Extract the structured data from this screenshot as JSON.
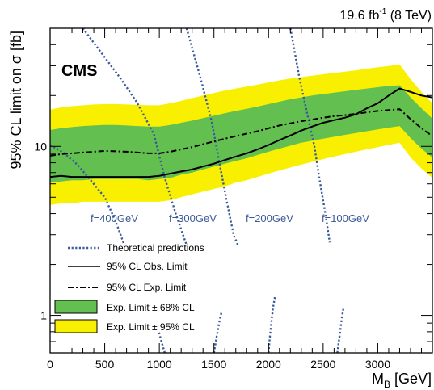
{
  "chart_data": {
    "type": "line",
    "title": "",
    "lumi_label": "19.6 fb",
    "lumi_sup": "-1",
    "lumi_suffix": " (8 TeV)",
    "experiment_label": "CMS",
    "xlabel_main": "M",
    "xlabel_sub": "B",
    "xlabel_unit": " [GeV]",
    "ylabel": "95% CL limit on σ [fb]",
    "xlim": [
      0,
      3500
    ],
    "ylim": [
      0.6,
      50
    ],
    "yscale": "log",
    "x_ticks": [
      0,
      500,
      1000,
      1500,
      2000,
      2500,
      3000
    ],
    "x_tick_labels": [
      "0",
      "500",
      "1000",
      "1500",
      "2000",
      "2500",
      "3000"
    ],
    "y_ticks": [
      1,
      10
    ],
    "y_tick_labels": [
      "1",
      "10"
    ],
    "x": [
      0,
      100,
      200,
      300,
      400,
      500,
      600,
      700,
      800,
      900,
      1000,
      1100,
      1200,
      1300,
      1400,
      1500,
      1600,
      1700,
      1800,
      1900,
      2000,
      2100,
      2200,
      2300,
      2400,
      2500,
      2600,
      2700,
      2800,
      2900,
      3000,
      3100,
      3200,
      3300,
      3400,
      3500
    ],
    "series": [
      {
        "name": "95% CL Obs. Limit",
        "style": "solid",
        "color": "#000000",
        "values": [
          6.6,
          6.7,
          6.6,
          6.6,
          6.6,
          6.6,
          6.6,
          6.6,
          6.6,
          6.6,
          6.7,
          6.9,
          7.1,
          7.3,
          7.6,
          7.9,
          8.3,
          8.7,
          9.1,
          9.6,
          10.2,
          10.9,
          11.6,
          12.4,
          13.1,
          13.8,
          14.3,
          14.8,
          15.5,
          16.8,
          18.0,
          20.0,
          22.0,
          21.0,
          20.0,
          19.5
        ]
      },
      {
        "name": "95% CL Exp. Limit",
        "style": "dashdot",
        "color": "#000000",
        "values": [
          8.8,
          9.0,
          9.1,
          9.2,
          9.3,
          9.4,
          9.35,
          9.3,
          9.2,
          9.1,
          9.1,
          9.3,
          9.6,
          9.9,
          10.3,
          10.7,
          11.1,
          11.5,
          11.9,
          12.3,
          12.8,
          13.3,
          13.7,
          14.1,
          14.4,
          14.8,
          15.1,
          15.3,
          15.6,
          15.9,
          16.2,
          16.4,
          16.6,
          14.5,
          12.8,
          11.5
        ]
      }
    ],
    "bands": [
      {
        "name": "Exp. Limit ± 95% CL",
        "color": "#f8f000",
        "lower": [
          4.5,
          4.6,
          4.6,
          4.7,
          4.7,
          4.7,
          4.7,
          4.7,
          4.7,
          4.7,
          4.7,
          4.8,
          5.0,
          5.2,
          5.4,
          5.6,
          5.8,
          6.1,
          6.3,
          6.6,
          6.9,
          7.2,
          7.5,
          7.8,
          8.1,
          8.4,
          8.7,
          9.0,
          9.3,
          9.6,
          9.9,
          10.2,
          10.5,
          8.6,
          7.4,
          6.5
        ],
        "upper": [
          16.5,
          17.0,
          17.3,
          17.5,
          17.7,
          17.8,
          17.8,
          17.7,
          17.6,
          17.5,
          17.5,
          18.0,
          18.6,
          19.3,
          20.0,
          20.7,
          21.4,
          22.0,
          22.6,
          23.2,
          23.9,
          24.6,
          25.2,
          25.7,
          26.2,
          26.7,
          27.2,
          27.7,
          28.2,
          28.8,
          29.4,
          29.9,
          30.5,
          25.0,
          21.0,
          18.0
        ]
      },
      {
        "name": "Exp. Limit ± 68% CL",
        "color": "#63bf4f",
        "lower": [
          6.1,
          6.2,
          6.3,
          6.3,
          6.4,
          6.4,
          6.4,
          6.4,
          6.4,
          6.3,
          6.4,
          6.5,
          6.8,
          7.0,
          7.3,
          7.6,
          7.9,
          8.2,
          8.5,
          8.9,
          9.3,
          9.7,
          10.1,
          10.5,
          10.8,
          11.1,
          11.4,
          11.7,
          12.0,
          12.3,
          12.6,
          12.9,
          13.2,
          11.2,
          9.7,
          8.6
        ],
        "upper": [
          12.5,
          12.8,
          13.0,
          13.2,
          13.3,
          13.4,
          13.4,
          13.3,
          13.2,
          13.1,
          13.1,
          13.4,
          13.8,
          14.2,
          14.7,
          15.2,
          15.7,
          16.2,
          16.7,
          17.2,
          17.8,
          18.4,
          19.0,
          19.5,
          20.0,
          20.4,
          20.8,
          21.2,
          21.6,
          22.0,
          22.4,
          22.8,
          23.0,
          19.5,
          16.8,
          14.6
        ]
      }
    ],
    "theory_curves": [
      {
        "label": "f=400GeV",
        "points": [
          [
            0,
            10.2
          ],
          [
            120,
            9.2
          ],
          [
            250,
            7.8
          ],
          [
            380,
            6.2
          ],
          [
            500,
            5.0
          ],
          [
            600,
            3.6
          ],
          [
            680,
            2.6
          ]
        ]
      },
      {
        "label": "f=300GeV",
        "points": [
          [
            300,
            50
          ],
          [
            480,
            35
          ],
          [
            650,
            25
          ],
          [
            800,
            18
          ],
          [
            950,
            11.8
          ],
          [
            1050,
            6.5
          ],
          [
            1150,
            4.0
          ],
          [
            1250,
            2.6
          ]
        ]
      },
      {
        "label": "f=200GeV",
        "points": [
          [
            1250,
            50
          ],
          [
            1380,
            25
          ],
          [
            1480,
            14
          ],
          [
            1550,
            8.0
          ],
          [
            1610,
            5.0
          ],
          [
            1680,
            3.0
          ],
          [
            1720,
            2.6
          ]
        ]
      },
      {
        "label": "f=100GeV",
        "points": [
          [
            2200,
            50
          ],
          [
            2280,
            26
          ],
          [
            2360,
            15
          ],
          [
            2420,
            10
          ],
          [
            2470,
            6.2
          ],
          [
            2520,
            4.0
          ],
          [
            2560,
            2.7
          ]
        ]
      },
      {
        "label": "",
        "points": [
          [
            1050,
            0.6
          ],
          [
            1020,
            0.7
          ],
          [
            995,
            0.8
          ]
        ]
      },
      {
        "label": "",
        "points": [
          [
            1500,
            0.6
          ],
          [
            1525,
            0.75
          ],
          [
            1555,
            0.95
          ],
          [
            1570,
            1.05
          ]
        ]
      },
      {
        "label": "",
        "points": [
          [
            2000,
            0.6
          ],
          [
            2010,
            0.72
          ],
          [
            2025,
            0.9
          ],
          [
            2040,
            1.1
          ],
          [
            2060,
            1.3
          ]
        ]
      },
      {
        "label": "",
        "points": [
          [
            2630,
            0.6
          ],
          [
            2650,
            0.75
          ],
          [
            2670,
            0.95
          ],
          [
            2685,
            1.1
          ]
        ]
      }
    ],
    "legend": {
      "position": "bottom-left",
      "entries": [
        {
          "label": "Theoretical predictions",
          "kind": "dotted"
        },
        {
          "label": "95% CL Obs. Limit",
          "kind": "solid"
        },
        {
          "label": "95% CL Exp. Limit",
          "kind": "dashdot"
        },
        {
          "label": "Exp. Limit ± 68% CL",
          "kind": "box",
          "color": "#63bf4f"
        },
        {
          "label": "Exp. Limit ± 95% CL",
          "kind": "box",
          "color": "#f8f000"
        }
      ]
    },
    "colors": {
      "theory": "#3a5a9a",
      "band68": "#63bf4f",
      "band95": "#f8f000"
    }
  }
}
